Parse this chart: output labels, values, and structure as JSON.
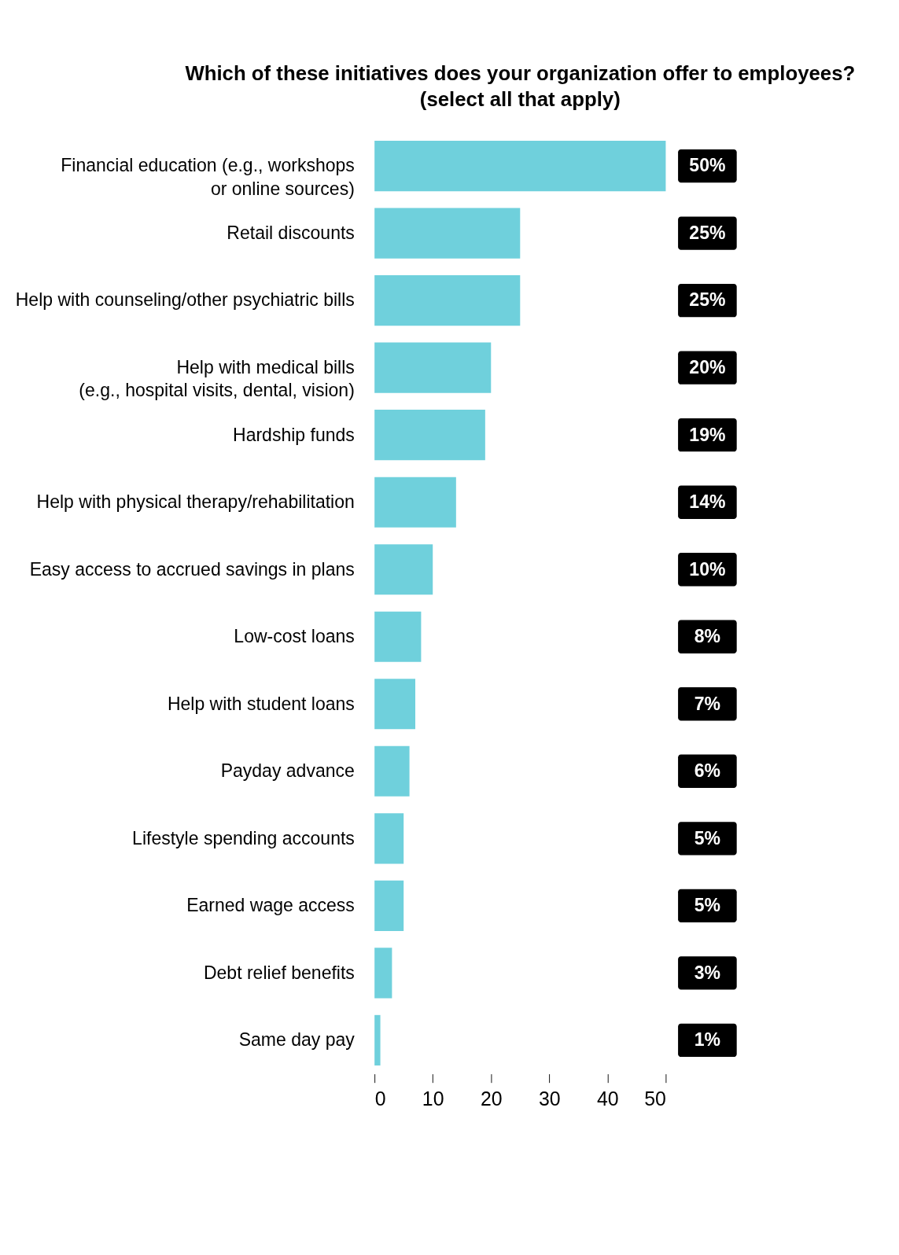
{
  "chart_data": {
    "type": "bar",
    "orientation": "horizontal",
    "title": [
      "Which of these initiatives does your organization offer to employees?",
      "(select all that apply)"
    ],
    "categories": [
      "Financial education (e.g., workshops\nor online sources)",
      "Retail discounts",
      "Help with counseling/other psychiatric bills",
      "Help with medical bills\n(e.g., hospital visits, dental, vision)",
      "Hardship funds",
      "Help with physical therapy/rehabilitation",
      "Easy access to accrued savings in plans",
      "Low-cost loans",
      "Help with student loans",
      "Payday advance",
      "Lifestyle spending accounts",
      "Earned wage access",
      "Debt relief benefits",
      "Same day pay"
    ],
    "values": [
      50,
      25,
      25,
      20,
      19,
      14,
      10,
      8,
      7,
      6,
      5,
      5,
      3,
      1
    ],
    "value_labels": [
      "50%",
      "25%",
      "25%",
      "20%",
      "19%",
      "14%",
      "10%",
      "8%",
      "7%",
      "6%",
      "5%",
      "5%",
      "3%",
      "1%"
    ],
    "color": "#6fd0dc",
    "xlim": [
      0,
      50
    ],
    "xticks": [
      0,
      10,
      20,
      30,
      40,
      50
    ],
    "grid": false
  }
}
